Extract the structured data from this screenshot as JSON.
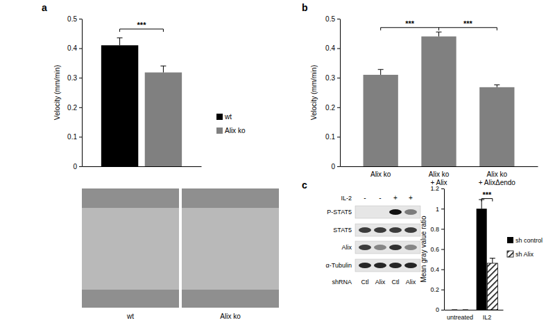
{
  "chart_data": [
    {
      "type": "bar",
      "title": "a",
      "y_label": "Velocity (mm/min)",
      "categories": [
        null
      ],
      "series": [
        {
          "name": "wt",
          "color": "#000000",
          "values": [
            0.41
          ],
          "errors": [
            0.025
          ]
        },
        {
          "name": "Alix ko",
          "color": "#808080",
          "values": [
            0.318
          ],
          "errors": [
            0.022
          ]
        }
      ],
      "ylim": [
        0,
        0.5
      ],
      "yticks": [
        0,
        0.1,
        0.2,
        0.3,
        0.4,
        0.5
      ],
      "legend": "right",
      "tick_labels": "y",
      "annotations": [
        {
          "text": "***",
          "from": [
            0,
            0
          ],
          "to": [
            0,
            1
          ],
          "y": 0.465
        }
      ]
    },
    {
      "type": "bar",
      "title": "b",
      "y_label": "Velocity (mm/min)",
      "categories": [
        "Alix ko",
        "Alix ko\n+ Alix",
        "Alix ko\n+ AlixΔendo"
      ],
      "values": [
        0.31,
        0.44,
        0.268
      ],
      "errors": [
        0.018,
        0.015,
        0.008
      ],
      "color": "#808080",
      "ylim": [
        0,
        0.5
      ],
      "yticks": [
        0,
        0.1,
        0.2,
        0.3,
        0.4,
        0.5
      ],
      "annotations": [
        {
          "text": "***",
          "from": [
            0,
            0
          ],
          "to": [
            1,
            0
          ],
          "y": 0.47
        },
        {
          "text": "***",
          "from": [
            1,
            0
          ],
          "to": [
            2,
            0
          ],
          "y": 0.47
        }
      ]
    },
    {
      "type": "bar",
      "title": "c",
      "y_label": "Mean gray value ratio",
      "categories": [
        "untreated",
        "IL2"
      ],
      "series": [
        {
          "name": "sh control",
          "color": "#000000",
          "values": [
            0,
            1.0
          ],
          "errors": [
            0,
            0.09
          ]
        },
        {
          "name": "sh Alix",
          "color": "#000000",
          "marker": "hatch",
          "values": [
            0,
            0.46
          ],
          "errors": [
            0,
            0.05
          ]
        }
      ],
      "ylim": [
        0,
        1.2
      ],
      "yticks": [
        0,
        0.2,
        0.4,
        0.6,
        0.8,
        1,
        1.2
      ],
      "legend": "right",
      "annotations": [
        {
          "text": "***",
          "from": [
            1,
            0
          ],
          "to": [
            1,
            1
          ],
          "y": 1.1
        }
      ]
    }
  ],
  "micrographs": {
    "labels": [
      "wt",
      "Alix ko"
    ]
  },
  "blot": {
    "treatment_label": "IL-2",
    "treatment": [
      "-",
      "-",
      "+",
      "+"
    ],
    "rows": [
      "P-STAT5",
      "STAT5",
      "Alix",
      "α-Tubulin"
    ],
    "intensity": [
      [
        0,
        0,
        1,
        0.5
      ],
      [
        0.8,
        0.8,
        0.8,
        0.8
      ],
      [
        0.8,
        0.45,
        0.85,
        0.45
      ],
      [
        0.9,
        0.9,
        0.9,
        0.9
      ]
    ],
    "shrna_label": "shRNA",
    "shrna": [
      "Ctl",
      "Alix",
      "Ctl",
      "Alix"
    ]
  }
}
